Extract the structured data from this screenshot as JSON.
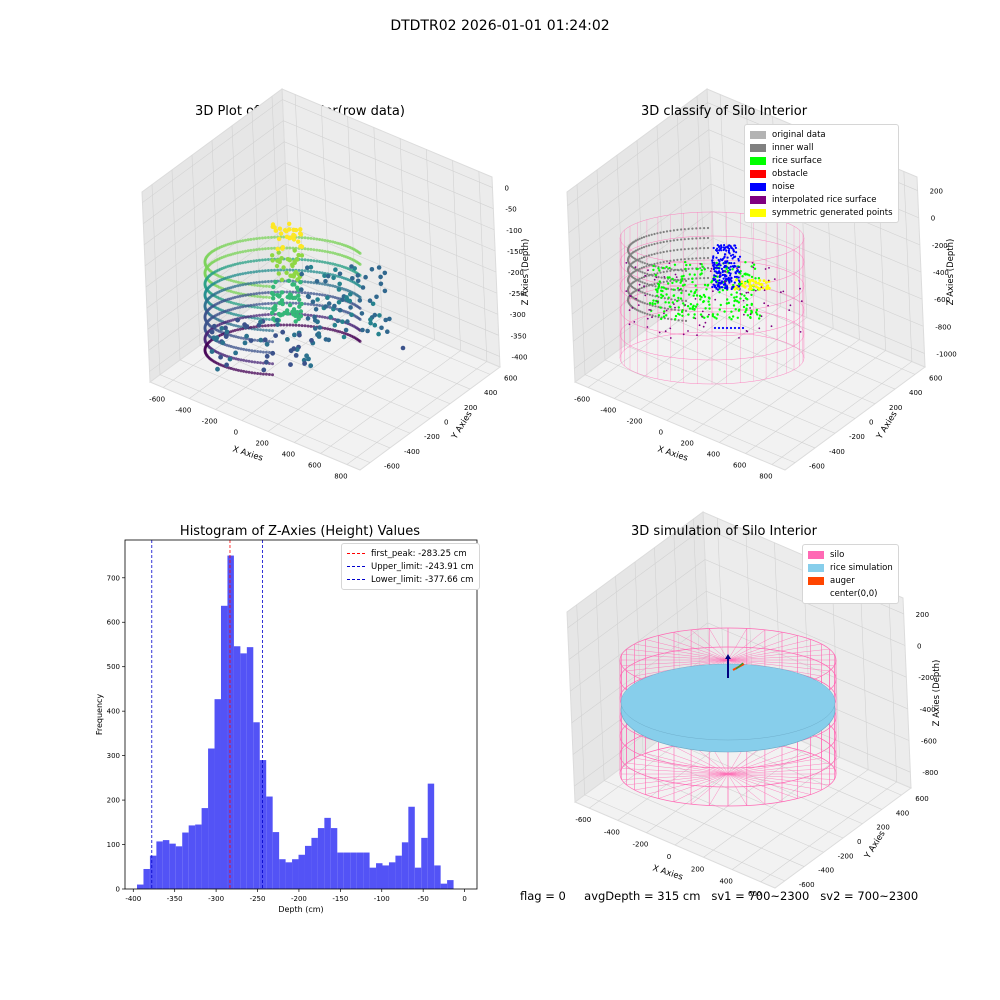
{
  "suptitle": "DTDTR02 2026-01-01 01:24:02",
  "colors": {
    "original_data": "#b3b3b3",
    "inner_wall": "#808080",
    "rice_surface": "#00ff00",
    "obstacle": "#ff0000",
    "noise": "#0000ff",
    "interpolated_rice_surface": "#800080",
    "symmetric_generated_points": "#ffff00",
    "silo": "#ff69b4",
    "rice_simulation": "#87ceeb",
    "auger": "#ff4500",
    "hist_bar": "#4a4af5",
    "first_peak": "#ff0000",
    "limit": "#0000cd"
  },
  "plot1": {
    "title": "3D Plot of Silo Interior(row data)",
    "xlabel": "X Axies",
    "ylabel": "Y Axies",
    "zlabel": "Z Axies (Depth)",
    "xticks": [
      "-600",
      "-400",
      "-200",
      "0",
      "200",
      "400",
      "600",
      "800"
    ],
    "yticks": [
      "-600",
      "-400",
      "-200",
      "0",
      "200",
      "400",
      "600"
    ],
    "zticks": [
      "0",
      "-50",
      "-100",
      "-150",
      "-200",
      "-250",
      "-300",
      "-350",
      "-400"
    ]
  },
  "plot2": {
    "title": "3D classify of Silo Interior",
    "xlabel": "X Axies",
    "ylabel": "Y Axies",
    "zlabel": "Z Axies (Depth)",
    "xticks": [
      "-600",
      "-400",
      "-200",
      "0",
      "200",
      "400",
      "600",
      "800"
    ],
    "yticks": [
      "-600",
      "-400",
      "-200",
      "0",
      "200",
      "400",
      "600"
    ],
    "zticks": [
      "200",
      "0",
      "-200",
      "-400",
      "-600",
      "-800",
      "-1000"
    ],
    "legend": [
      {
        "label": "original data",
        "color": "#b3b3b3"
      },
      {
        "label": "inner wall",
        "color": "#808080"
      },
      {
        "label": "rice surface",
        "color": "#00ff00"
      },
      {
        "label": "obstacle",
        "color": "#ff0000"
      },
      {
        "label": "noise",
        "color": "#0000ff"
      },
      {
        "label": "interpolated rice surface",
        "color": "#800080"
      },
      {
        "label": "symmetric generated points",
        "color": "#ffff00"
      }
    ]
  },
  "plot4": {
    "title": "3D simulation of Silo Interior",
    "xlabel": "X Axies",
    "ylabel": "Y Axies",
    "zlabel": "Z Axies (Depth)",
    "xticks": [
      "-600",
      "-400",
      "-200",
      "0",
      "200",
      "400",
      "600"
    ],
    "yticks": [
      "-600",
      "-400",
      "-200",
      "0",
      "200",
      "400",
      "600"
    ],
    "zticks": [
      "200",
      "0",
      "-200",
      "-400",
      "-600",
      "-800"
    ],
    "legend": [
      {
        "label": "silo",
        "color": "#ff69b4"
      },
      {
        "label": "rice simulation",
        "color": "#87ceeb"
      },
      {
        "label": "auger",
        "color": "#ff4500"
      },
      {
        "label": "center(0,0)",
        "color": ""
      }
    ]
  },
  "status": {
    "flag": "flag = 0",
    "avg_depth": "avgDepth = 315 cm",
    "sv1": "sv1 = 700~2300",
    "sv2": "sv2 = 700~2300"
  },
  "chart_data": {
    "type": "bar",
    "title": "Histogram of Z-Axies (Height) Values",
    "xlabel": "Depth (cm)",
    "ylabel": "Frequency",
    "xlim": [
      -410,
      15
    ],
    "ylim": [
      0,
      785
    ],
    "xticks": [
      -400,
      -350,
      -300,
      -250,
      -200,
      -150,
      -100,
      -50,
      0
    ],
    "yticks": [
      0,
      100,
      200,
      300,
      400,
      500,
      600,
      700
    ],
    "bin_start": -395.5,
    "bin_width": 7.8,
    "values": [
      10,
      45,
      75,
      107,
      110,
      102,
      96,
      127,
      143,
      145,
      182,
      316,
      427,
      637,
      750,
      546,
      530,
      544,
      375,
      290,
      208,
      128,
      67,
      60,
      67,
      77,
      97,
      115,
      137,
      160,
      137,
      82,
      82,
      82,
      82,
      82,
      48,
      58,
      53,
      60,
      75,
      105,
      185,
      48,
      115,
      237,
      53,
      12,
      20
    ],
    "vlines": [
      {
        "name": "first_peak: -283.25 cm",
        "x": -283.25,
        "color": "#ff0000"
      },
      {
        "name": "Upper_limit: -243.91 cm",
        "x": -243.91,
        "color": "#0000cd"
      },
      {
        "name": "Lower_limit: -377.66 cm",
        "x": -377.66,
        "color": "#0000cd"
      }
    ],
    "legend_position": "upper right"
  }
}
